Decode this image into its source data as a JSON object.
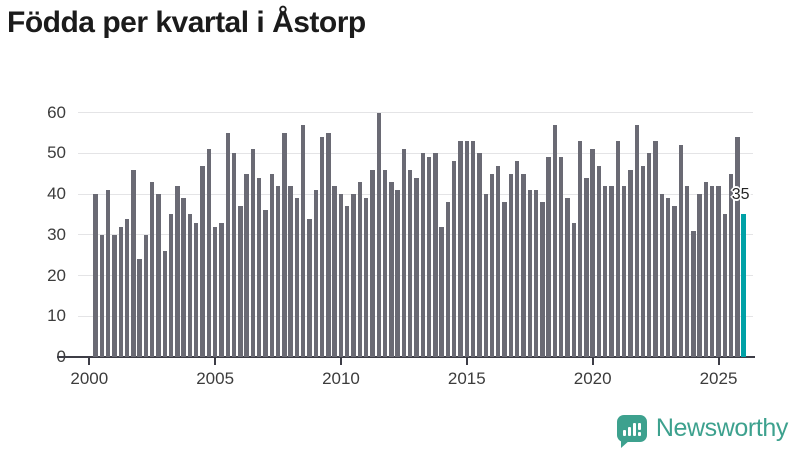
{
  "title": "Födda per kvartal i Åstorp",
  "footer": {
    "brand": "Newsworthy"
  },
  "chart_data": {
    "type": "bar",
    "title": "Födda per kvartal i Åstorp",
    "xlabel": "",
    "ylabel": "",
    "ylim": [
      0,
      60
    ],
    "grid": true,
    "legend": "none",
    "yticks": [
      0,
      10,
      20,
      30,
      40,
      50,
      60
    ],
    "xticks": [
      "2000",
      "2005",
      "2010",
      "2015",
      "2020",
      "2025"
    ],
    "bar_color": "#6a6a74",
    "axis_color": "#3d3d46",
    "x": [
      "2000 Q2",
      "2000 Q3",
      "2000 Q4",
      "2001 Q1",
      "2001 Q2",
      "2001 Q3",
      "2001 Q4",
      "2002 Q1",
      "2002 Q2",
      "2002 Q3",
      "2002 Q4",
      "2003 Q1",
      "2003 Q2",
      "2003 Q3",
      "2003 Q4",
      "2004 Q1",
      "2004 Q2",
      "2004 Q3",
      "2004 Q4",
      "2005 Q1",
      "2005 Q2",
      "2005 Q3",
      "2005 Q4",
      "2006 Q1",
      "2006 Q2",
      "2006 Q3",
      "2006 Q4",
      "2007 Q1",
      "2007 Q2",
      "2007 Q3",
      "2007 Q4",
      "2008 Q1",
      "2008 Q2",
      "2008 Q3",
      "2008 Q4",
      "2009 Q1",
      "2009 Q2",
      "2009 Q3",
      "2009 Q4",
      "2010 Q1",
      "2010 Q2",
      "2010 Q3",
      "2010 Q4",
      "2011 Q1",
      "2011 Q2",
      "2011 Q3",
      "2011 Q4",
      "2012 Q1",
      "2012 Q2",
      "2012 Q3",
      "2012 Q4",
      "2013 Q1",
      "2013 Q2",
      "2013 Q3",
      "2013 Q4",
      "2014 Q1",
      "2014 Q2",
      "2014 Q3",
      "2014 Q4",
      "2015 Q1",
      "2015 Q2",
      "2015 Q3",
      "2015 Q4",
      "2016 Q1",
      "2016 Q2",
      "2016 Q3",
      "2016 Q4",
      "2017 Q1",
      "2017 Q2",
      "2017 Q3",
      "2017 Q4",
      "2018 Q1",
      "2018 Q2",
      "2018 Q3",
      "2018 Q4",
      "2019 Q1",
      "2019 Q2",
      "2019 Q3",
      "2019 Q4",
      "2020 Q1",
      "2020 Q2",
      "2020 Q3",
      "2020 Q4",
      "2021 Q1",
      "2021 Q2",
      "2021 Q3",
      "2021 Q4",
      "2022 Q1",
      "2022 Q2",
      "2022 Q3",
      "2022 Q4",
      "2023 Q1",
      "2023 Q2",
      "2023 Q3",
      "2023 Q4",
      "2024 Q1",
      "2024 Q2",
      "2024 Q3",
      "2024 Q4",
      "2025 Q1",
      "2025 Q2",
      "2025 Q3",
      "2025 Q4",
      "2026 Q1"
    ],
    "values": [
      40,
      30,
      41,
      30,
      32,
      34,
      46,
      24,
      30,
      43,
      40,
      26,
      35,
      42,
      39,
      35,
      33,
      47,
      51,
      32,
      33,
      55,
      50,
      37,
      45,
      51,
      44,
      36,
      45,
      42,
      55,
      42,
      39,
      57,
      34,
      41,
      54,
      55,
      42,
      40,
      37,
      40,
      43,
      39,
      46,
      60,
      46,
      43,
      41,
      51,
      46,
      44,
      50,
      49,
      50,
      32,
      38,
      48,
      53,
      53,
      53,
      50,
      40,
      45,
      47,
      38,
      45,
      48,
      45,
      41,
      41,
      38,
      49,
      57,
      49,
      39,
      33,
      53,
      44,
      51,
      47,
      42,
      42,
      53,
      42,
      46,
      57,
      47,
      50,
      53,
      40,
      39,
      37,
      52,
      42,
      31,
      40,
      43,
      42,
      42,
      35,
      45,
      54,
      35
    ],
    "highlight": {
      "index": 103,
      "x": "2026 Q1",
      "value": 35,
      "label": "35",
      "color": "#00a1a6"
    }
  }
}
